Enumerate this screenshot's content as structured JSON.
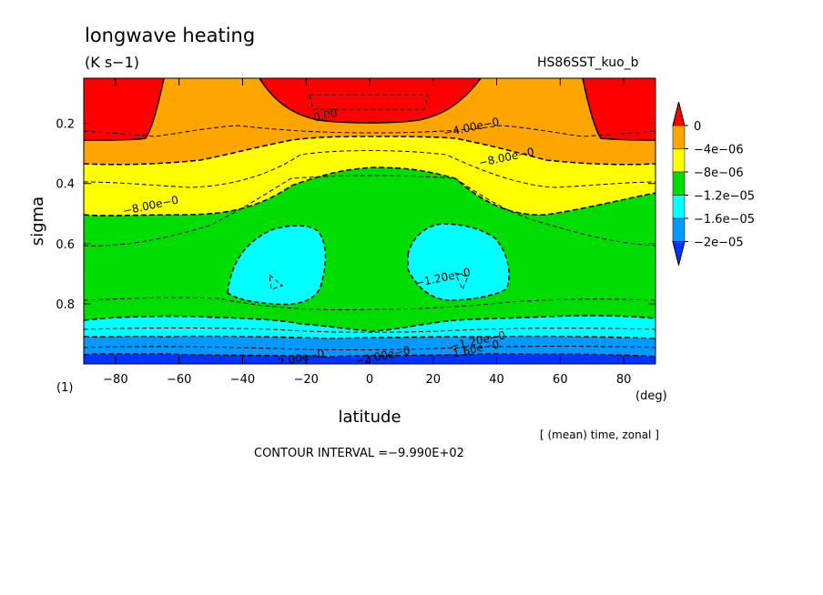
{
  "chart_data": {
    "type": "heatmap",
    "title": "longwave heating",
    "units": "(K s−1)",
    "run_label": "HS86SST_kuo_b",
    "xlabel": "latitude",
    "ylabel": "sigma",
    "x_unit": "(deg)",
    "panel_label": "(1)",
    "averaging_note": "[ (mean) time, zonal ]",
    "contour_interval_text": "CONTOUR INTERVAL =−9.990E+02",
    "xlim": [
      -90,
      90
    ],
    "ylim": [
      1.0,
      0.05
    ],
    "x_ticks": [
      -80,
      -60,
      -40,
      -20,
      0,
      20,
      40,
      60,
      80
    ],
    "y_ticks": [
      0.2,
      0.4,
      0.6,
      0.8
    ],
    "colorbar": {
      "labels": [
        "0",
        "−4e−06",
        "−8e−06",
        "−1.2e−05",
        "−1.6e−05",
        "−2e−05"
      ],
      "levels": [
        0,
        -4e-06,
        -8e-06,
        -1.2e-05,
        -1.6e-05,
        -2e-05
      ],
      "colors": [
        "#ff0000",
        "#ffa500",
        "#ffff00",
        "#00dd00",
        "#00ffff",
        "#0099ff",
        "#0033ff"
      ]
    },
    "contour_labels": [
      {
        "text": "0.00",
        "lat": -14,
        "sigma": 0.17
      },
      {
        "text": "−4.00e−0",
        "lat": 32,
        "sigma": 0.21
      },
      {
        "text": "−8.00e−0",
        "lat": 43,
        "sigma": 0.31
      },
      {
        "text": "−8.00e−0",
        "lat": -69,
        "sigma": 0.47
      },
      {
        "text": "−1.20e−0",
        "lat": 23,
        "sigma": 0.71
      },
      {
        "text": "−1.20e−0",
        "lat": 34,
        "sigma": 0.92
      },
      {
        "text": "−1.60e−0",
        "lat": 32,
        "sigma": 0.95
      },
      {
        "text": "−2.00e−0",
        "lat": 4,
        "sigma": 0.97
      },
      {
        "text": "−2.00e−0",
        "lat": -23,
        "sigma": 0.98
      }
    ],
    "regions": [
      {
        "level_index": 0,
        "description": "polar upper levels and tropical tropopause"
      },
      {
        "level_index": 1,
        "description": "upper troposphere"
      },
      {
        "level_index": 2,
        "description": "mid-upper troposphere"
      },
      {
        "level_index": 3,
        "description": "mid troposphere"
      },
      {
        "level_index": 4,
        "description": "subtropical mid-lower troposphere and near surface"
      },
      {
        "level_index": 5,
        "description": "near surface"
      },
      {
        "level_index": 6,
        "description": "lowest level"
      }
    ]
  }
}
